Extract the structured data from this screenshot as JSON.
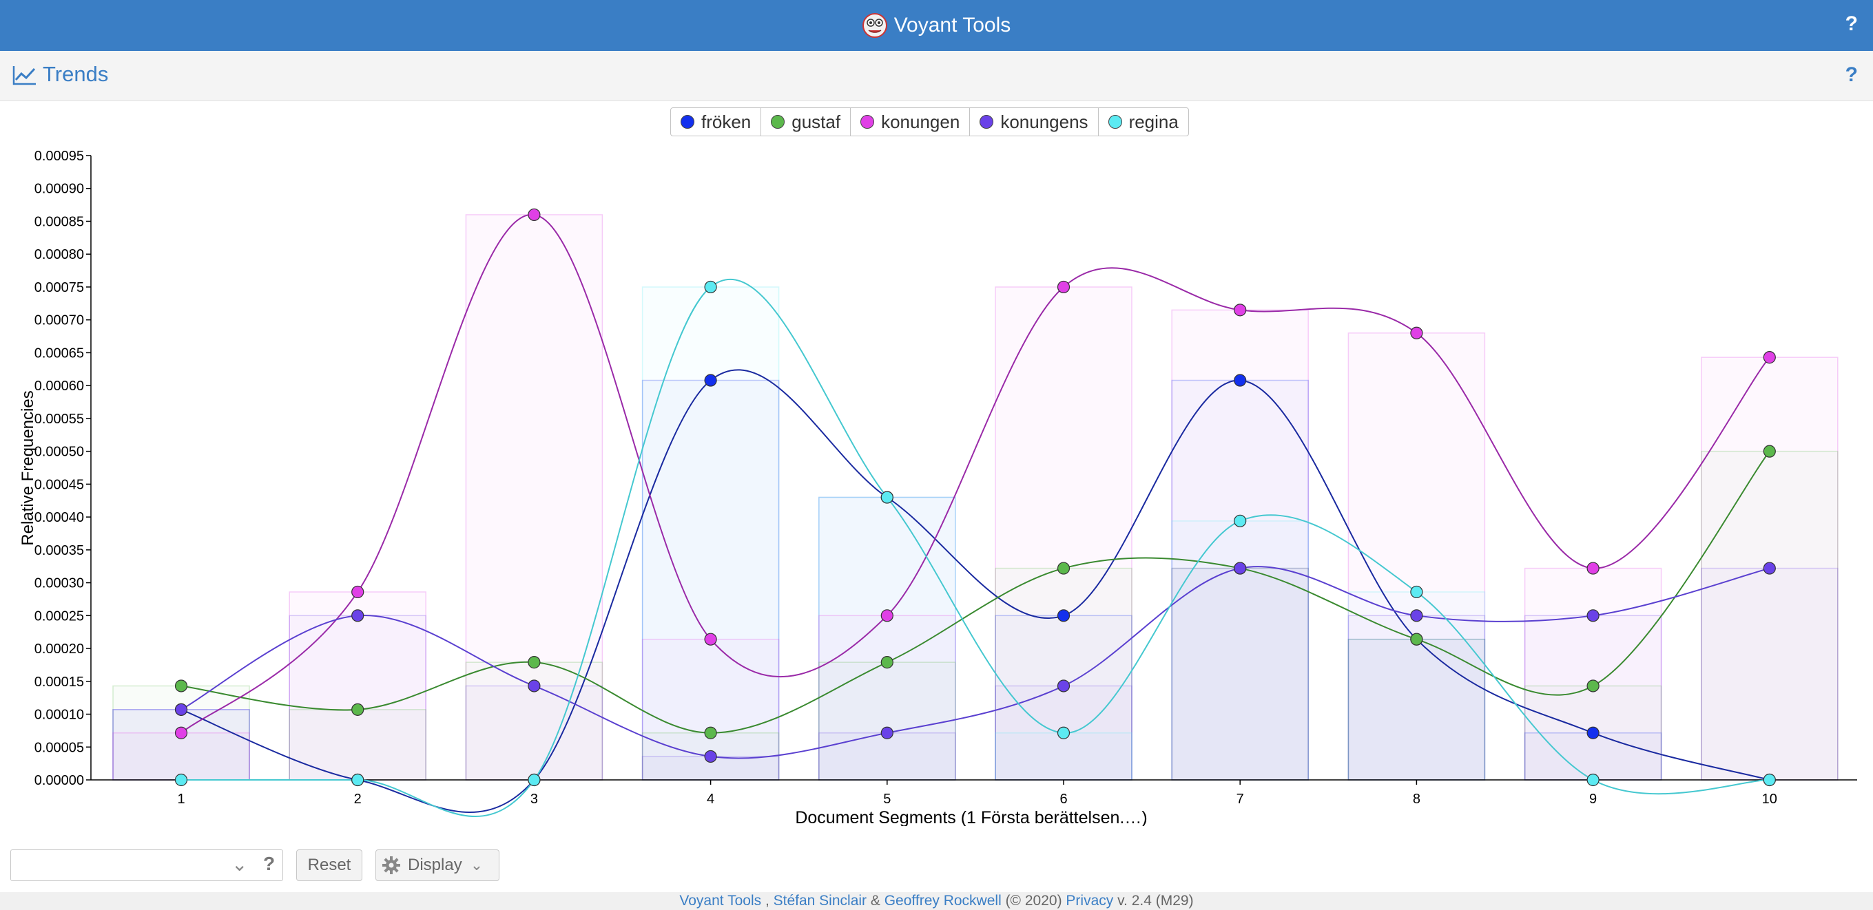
{
  "app": {
    "title": "Voyant Tools",
    "help": "?"
  },
  "panel": {
    "title": "Trends",
    "help": "?"
  },
  "toolbar": {
    "combo_value": "",
    "combo_help": "?",
    "reset_label": "Reset",
    "display_label": "Display"
  },
  "footer": {
    "voyant": "Voyant Tools",
    "sep1": " , ",
    "author1": "Stéfan Sinclair",
    "amp": " & ",
    "author2": "Geoffrey Rockwell",
    "year": " (© 2020) ",
    "privacy": "Privacy",
    "version": " v. 2.4 (M29)"
  },
  "chart_data": {
    "type": "line",
    "ylabel": "Relative Frequencies",
    "xlabel": "Document Segments (1 Första berättelsen.…)",
    "x": [
      1,
      2,
      3,
      4,
      5,
      6,
      7,
      8,
      9,
      10
    ],
    "ylim": [
      0,
      0.00095
    ],
    "yticks": [
      "0.00000",
      "0.00005",
      "0.00010",
      "0.00015",
      "0.00020",
      "0.00025",
      "0.00030",
      "0.00035",
      "0.00040",
      "0.00045",
      "0.00050",
      "0.00055",
      "0.00060",
      "0.00065",
      "0.00070",
      "0.00075",
      "0.00080",
      "0.00085",
      "0.00090",
      "0.00095"
    ],
    "legend_position": "top-center",
    "series": [
      {
        "name": "fröken",
        "color": "#1330ee",
        "line": "#1a2aa0",
        "values": [
          0.000107,
          0,
          0,
          0.000608,
          0.00043,
          0.00025,
          0.000608,
          0.000214,
          7.15e-05,
          0
        ]
      },
      {
        "name": "gustaf",
        "color": "#5cb84c",
        "line": "#3a8a30",
        "values": [
          0.000143,
          0.000107,
          0.000179,
          7.15e-05,
          0.000179,
          0.000322,
          0.000322,
          0.000214,
          0.000143,
          0.0005
        ]
      },
      {
        "name": "konungen",
        "color": "#e040e6",
        "line": "#9a2aa8",
        "values": [
          7.15e-05,
          0.000286,
          0.00086,
          0.000214,
          0.00025,
          0.00075,
          0.000715,
          0.00068,
          0.000322,
          0.000643
        ]
      },
      {
        "name": "konungens",
        "color": "#6a42e8",
        "line": "#5a40d0",
        "values": [
          0.000107,
          0.00025,
          0.000143,
          3.57e-05,
          7.15e-05,
          0.000143,
          0.000322,
          0.00025,
          0.00025,
          0.000322
        ]
      },
      {
        "name": "regina",
        "color": "#5ceaf2",
        "line": "#45c8d0",
        "values": [
          0,
          0,
          0,
          0.00075,
          0.00043,
          7.15e-05,
          0.000394,
          0.000286,
          0,
          0
        ]
      }
    ]
  }
}
